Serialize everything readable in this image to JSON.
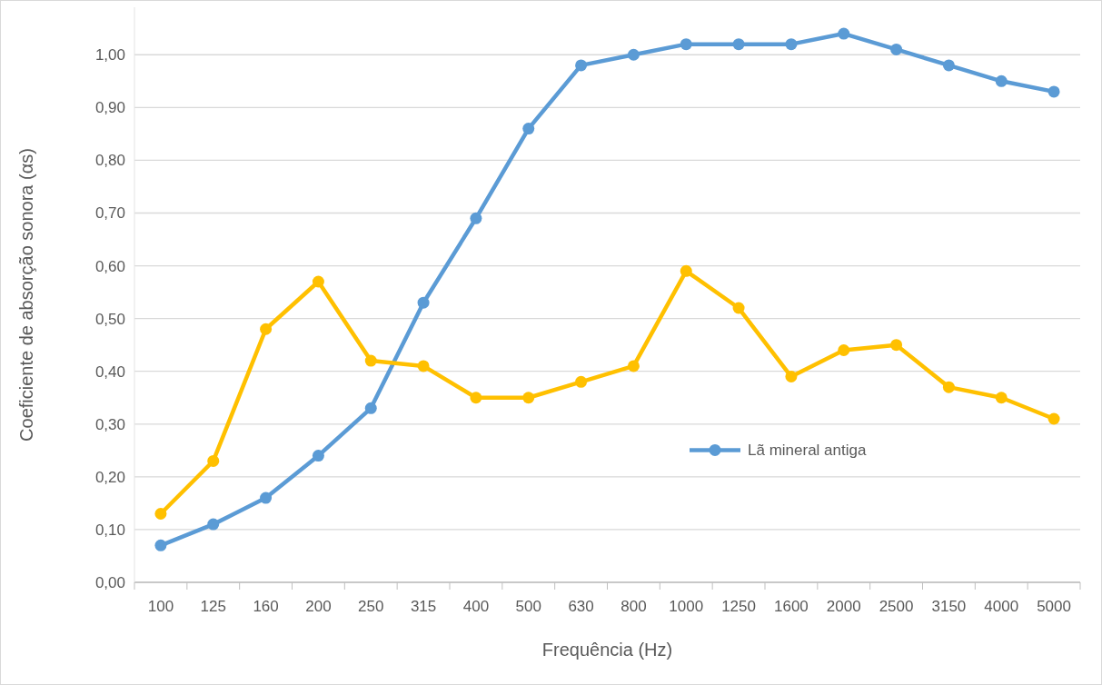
{
  "chart_data": {
    "type": "line",
    "xlabel": "Frequência (Hz)",
    "ylabel": "Coeficiente de absorção sonora (αs)",
    "categories": [
      "100",
      "125",
      "160",
      "200",
      "250",
      "315",
      "400",
      "500",
      "630",
      "800",
      "1000",
      "1250",
      "1600",
      "2000",
      "2500",
      "3150",
      "4000",
      "5000"
    ],
    "series": [
      {
        "name": "Lã mineral antiga",
        "color": "#5b9bd5",
        "values": [
          0.07,
          0.11,
          0.16,
          0.24,
          0.33,
          0.53,
          0.69,
          0.86,
          0.98,
          1.0,
          1.02,
          1.02,
          1.02,
          1.04,
          1.01,
          0.98,
          0.95,
          0.93
        ]
      },
      {
        "color": "#ffc000",
        "values": [
          0.13,
          0.23,
          0.48,
          0.57,
          0.42,
          0.41,
          0.35,
          0.35,
          0.38,
          0.41,
          0.59,
          0.52,
          0.39,
          0.44,
          0.45,
          0.37,
          0.35,
          0.31
        ]
      }
    ],
    "ylim": [
      0,
      1.09
    ],
    "yticks": [
      {
        "value": 0,
        "label": "0,00"
      },
      {
        "value": 0.1,
        "label": "0,10"
      },
      {
        "value": 0.2,
        "label": "0,20"
      },
      {
        "value": 0.3,
        "label": "0,30"
      },
      {
        "value": 0.4,
        "label": "0,40"
      },
      {
        "value": 0.5,
        "label": "0,50"
      },
      {
        "value": 0.6,
        "label": "0,60"
      },
      {
        "value": 0.7,
        "label": "0,70"
      },
      {
        "value": 0.8,
        "label": "0,80"
      },
      {
        "value": 0.9,
        "label": "0,90"
      },
      {
        "value": 1,
        "label": "1,00"
      }
    ],
    "grid": "y",
    "legend": "right",
    "marker": "circle",
    "line_style": "solid"
  }
}
